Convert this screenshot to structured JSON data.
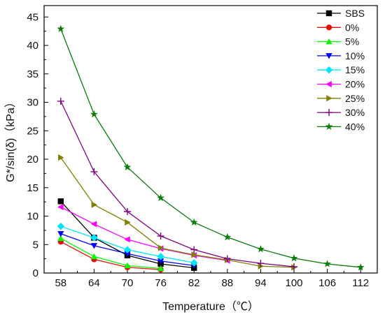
{
  "chart_data": {
    "type": "line",
    "xlabel": "Temperature（℃）",
    "ylabel": "G*/sin(δ)（kPa）",
    "title": "",
    "x_ticks": [
      58,
      64,
      70,
      76,
      82,
      88,
      94,
      100,
      106,
      112
    ],
    "y_ticks": [
      0,
      5,
      10,
      15,
      20,
      25,
      30,
      35,
      40,
      45
    ],
    "xlim": [
      55,
      115
    ],
    "ylim": [
      0,
      47
    ],
    "grid": false,
    "legend_position": "top-right",
    "series": [
      {
        "name": "SBS",
        "color": "#000000",
        "marker": "square",
        "x": [
          58,
          64,
          70,
          76,
          82
        ],
        "y": [
          12.6,
          6.2,
          3.1,
          1.6,
          0.9
        ]
      },
      {
        "name": "0%",
        "color": "#e3120b",
        "marker": "circle",
        "x": [
          58,
          64,
          70,
          76
        ],
        "y": [
          5.5,
          2.4,
          1.0,
          0.6
        ]
      },
      {
        "name": "5%",
        "color": "#00ff00",
        "marker": "triangle-up",
        "x": [
          58,
          64,
          70,
          76
        ],
        "y": [
          6.1,
          2.9,
          1.3,
          0.8
        ]
      },
      {
        "name": "10%",
        "color": "#0000ff",
        "marker": "triangle-down",
        "x": [
          58,
          64,
          70,
          76,
          82
        ],
        "y": [
          6.9,
          4.8,
          3.4,
          2.1,
          1.3
        ]
      },
      {
        "name": "15%",
        "color": "#00e5ff",
        "marker": "diamond",
        "x": [
          58,
          64,
          70,
          76,
          82
        ],
        "y": [
          8.2,
          6.2,
          4.1,
          2.9,
          1.8
        ]
      },
      {
        "name": "20%",
        "color": "#ff00ff",
        "marker": "triangle-left",
        "x": [
          58,
          64,
          70,
          76,
          82,
          88
        ],
        "y": [
          11.6,
          8.6,
          5.9,
          4.3,
          3.1,
          2.2
        ]
      },
      {
        "name": "25%",
        "color": "#808000",
        "marker": "triangle-right",
        "x": [
          58,
          64,
          70,
          76,
          82,
          88,
          94,
          100
        ],
        "y": [
          20.3,
          12.0,
          8.9,
          4.4,
          3.2,
          2.3,
          1.2,
          1.0
        ]
      },
      {
        "name": "30%",
        "color": "#800080",
        "marker": "plus",
        "x": [
          58,
          64,
          70,
          76,
          82,
          88,
          94,
          100
        ],
        "y": [
          30.2,
          17.8,
          10.8,
          6.5,
          4.1,
          2.5,
          1.7,
          1.1
        ]
      },
      {
        "name": "40%",
        "color": "#0a7d0a",
        "marker": "star",
        "x": [
          58,
          64,
          70,
          76,
          82,
          88,
          94,
          100,
          106,
          112
        ],
        "y": [
          42.9,
          27.9,
          18.6,
          13.2,
          8.9,
          6.3,
          4.2,
          2.6,
          1.6,
          1.0
        ]
      }
    ]
  }
}
